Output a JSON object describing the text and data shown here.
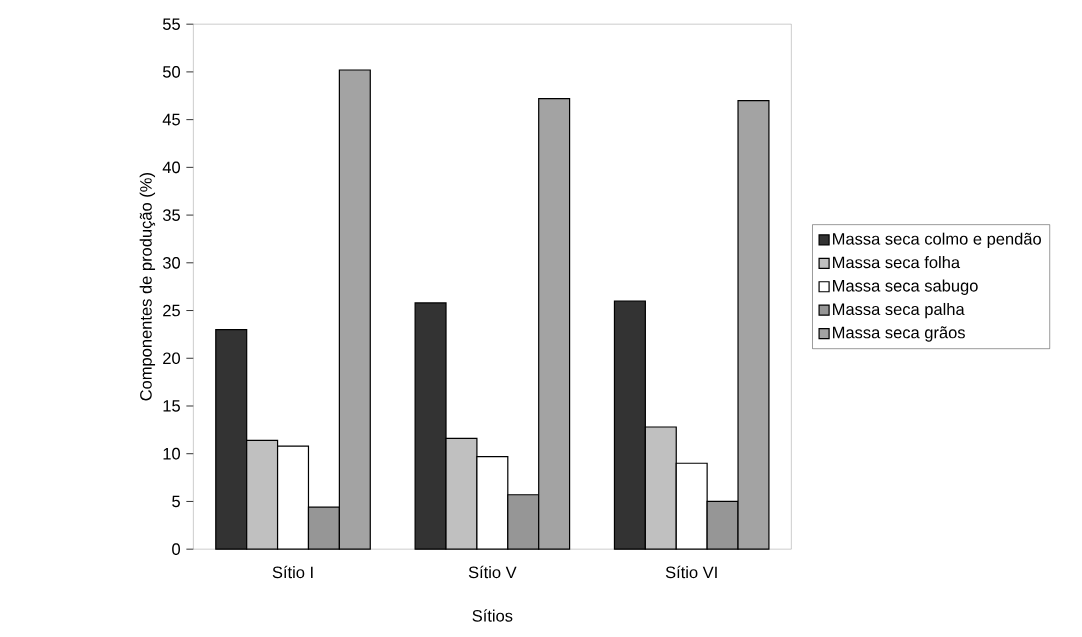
{
  "chart_data": {
    "type": "bar",
    "xlabel": "Sítios",
    "ylabel": "Componentes de produção (%)",
    "categories": [
      "Sítio I",
      "Sítio V",
      "Sítio VI"
    ],
    "series": [
      {
        "name": "Massa seca colmo e pendão",
        "color": "#333333",
        "values": [
          23.0,
          25.8,
          26.0
        ]
      },
      {
        "name": "Massa seca folha",
        "color": "#c0c0c0",
        "values": [
          11.4,
          11.6,
          12.8
        ]
      },
      {
        "name": "Massa seca sabugo",
        "color": "#ffffff",
        "values": [
          10.8,
          9.7,
          9.0
        ]
      },
      {
        "name": "Massa seca palha",
        "color": "#969696",
        "values": [
          4.4,
          5.7,
          5.0
        ]
      },
      {
        "name": "Massa seca grãos",
        "color": "#a3a3a3",
        "values": [
          50.2,
          47.2,
          47.0
        ]
      }
    ],
    "ylim": [
      0,
      55
    ],
    "yticks": [
      0,
      5,
      10,
      15,
      20,
      25,
      30,
      35,
      40,
      45,
      50,
      55
    ],
    "grid": false,
    "legend": "right"
  }
}
